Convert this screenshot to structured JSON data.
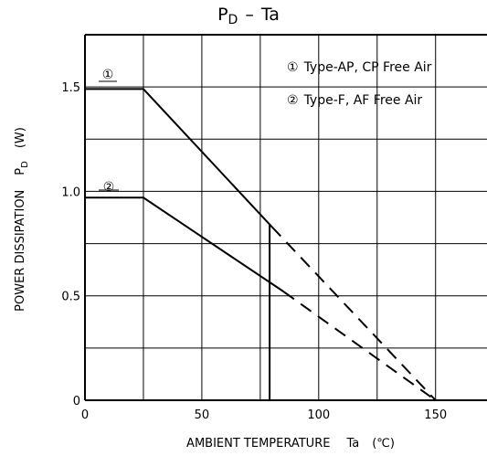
{
  "chart_data": {
    "type": "line",
    "title": {
      "main": "P",
      "main_sub": "D",
      "separator": "–",
      "rest": "Ta"
    },
    "xlabel": {
      "text": "AMBIENT TEMPERATURE",
      "symbol": "Ta",
      "unit": "(℃)"
    },
    "ylabel": {
      "text": "POWER DISSIPATION",
      "symbol": "P",
      "symbol_sub": "D",
      "unit": "(W)"
    },
    "xlim": [
      0,
      172
    ],
    "ylim": [
      0,
      1.75
    ],
    "x_ticks": [
      {
        "value": 0,
        "label": "0"
      },
      {
        "value": 50,
        "label": "50"
      },
      {
        "value": 100,
        "label": "100"
      },
      {
        "value": 150,
        "label": "150"
      }
    ],
    "y_ticks": [
      {
        "value": 0,
        "label": "0"
      },
      {
        "value": 0.5,
        "label": "0.5"
      },
      {
        "value": 1.0,
        "label": "1.0"
      },
      {
        "value": 1.5,
        "label": "1.5"
      }
    ],
    "grid": {
      "x": [
        25,
        50,
        75,
        100,
        125,
        150
      ],
      "y": [
        0.25,
        0.5,
        0.75,
        1.0,
        1.25,
        1.5
      ]
    },
    "series": [
      {
        "marker": "①",
        "name": "Type-AP, CP Free Air",
        "solid": [
          {
            "x": 0,
            "y": 1.49
          },
          {
            "x": 25,
            "y": 1.49
          },
          {
            "x": 80,
            "y": 0.83
          }
        ],
        "dashed": [
          {
            "x": 80,
            "y": 0.83
          },
          {
            "x": 150,
            "y": 0
          }
        ]
      },
      {
        "marker": "②",
        "name": "Type-F, AF Free Air",
        "solid": [
          {
            "x": 0,
            "y": 0.97
          },
          {
            "x": 25,
            "y": 0.97
          },
          {
            "x": 85,
            "y": 0.52
          }
        ],
        "dashed": [
          {
            "x": 85,
            "y": 0.52
          },
          {
            "x": 150,
            "y": 0
          }
        ]
      }
    ],
    "extra_vlines": [
      {
        "x": 79,
        "y_top": 0.84
      }
    ],
    "legend_position": "top-right"
  }
}
